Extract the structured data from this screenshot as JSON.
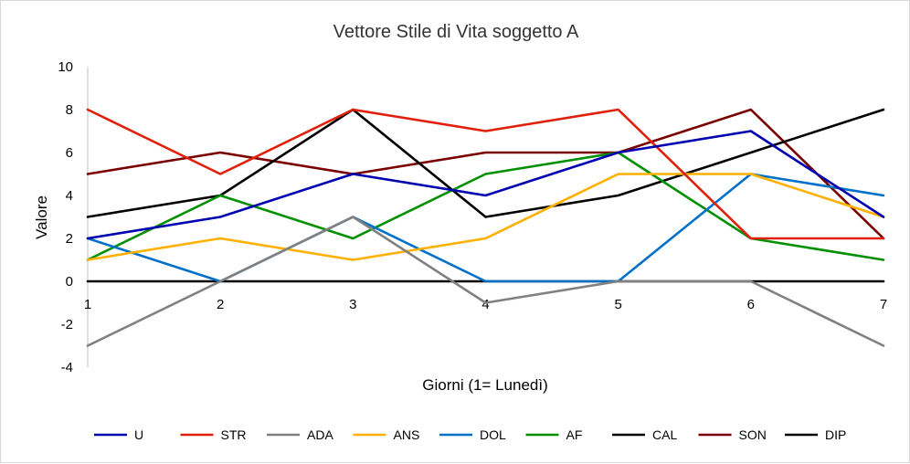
{
  "chart_data": {
    "type": "line",
    "title": "Vettore Stile di Vita soggetto A",
    "xlabel": "Giorni (1= Lunedì)",
    "ylabel": "Valore",
    "x": [
      1,
      2,
      3,
      4,
      5,
      6,
      7
    ],
    "x_tick_labels": [
      "1",
      "2",
      "3",
      "4",
      "5",
      "6",
      "7"
    ],
    "ylim": [
      -4,
      10
    ],
    "y_ticks": [
      -4,
      -2,
      0,
      2,
      4,
      6,
      8,
      10
    ],
    "y_tick_labels": [
      "-4",
      "-2",
      "0",
      "2",
      "4",
      "6",
      "8",
      "10"
    ],
    "grid": false,
    "legend_position": "bottom",
    "series": [
      {
        "name": "U",
        "color": "#0000b0",
        "values": [
          2,
          3,
          5,
          4,
          6,
          7,
          3
        ]
      },
      {
        "name": "STR",
        "color": "#e0200a",
        "values": [
          8,
          5,
          8,
          7,
          8,
          2,
          2
        ]
      },
      {
        "name": "ADA",
        "color": "#808080",
        "values": [
          -3,
          0,
          3,
          -1,
          0,
          0,
          -3
        ]
      },
      {
        "name": "ANS",
        "color": "#ffb000",
        "values": [
          1,
          2,
          1,
          2,
          5,
          5,
          3
        ]
      },
      {
        "name": "DOL",
        "color": "#0070c8",
        "values": [
          2,
          0,
          3,
          0,
          0,
          5,
          4
        ]
      },
      {
        "name": "AF",
        "color": "#009000",
        "values": [
          1,
          4,
          2,
          5,
          6,
          2,
          1
        ]
      },
      {
        "name": "CAL",
        "color": "#000000",
        "values": [
          3,
          4,
          8,
          3,
          4,
          6,
          8
        ]
      },
      {
        "name": "SON",
        "color": "#7a0000",
        "values": [
          5,
          6,
          5,
          6,
          6,
          8,
          2
        ]
      },
      {
        "name": "DIP",
        "color": "#000000",
        "values": [
          0,
          0,
          0,
          0,
          0,
          0,
          0
        ]
      }
    ]
  }
}
